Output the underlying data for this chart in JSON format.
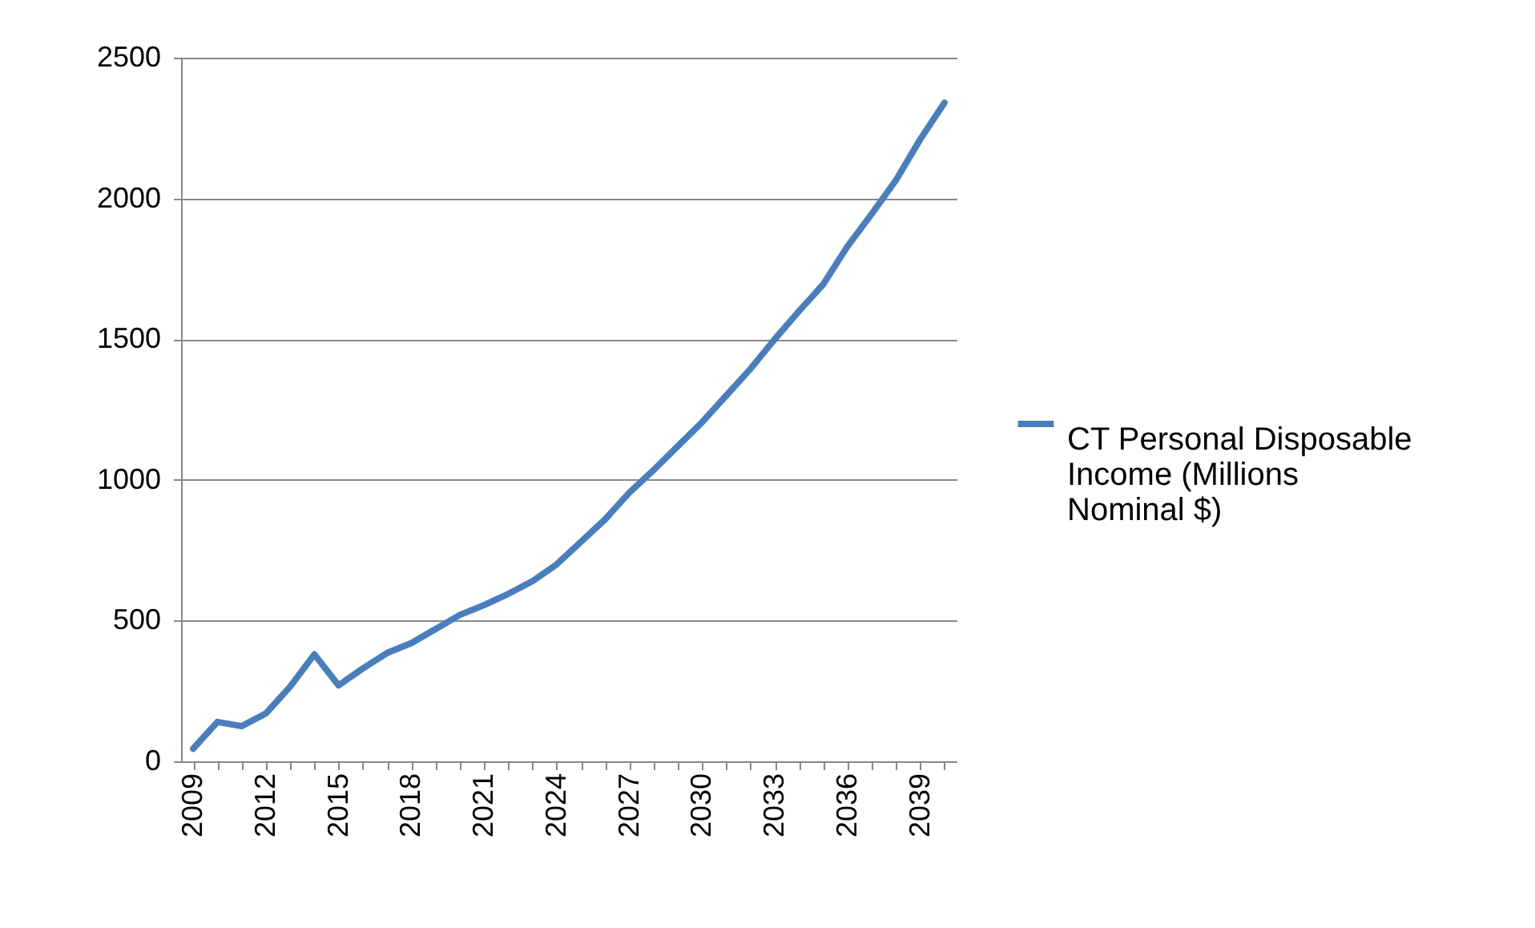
{
  "chart_data": {
    "type": "line",
    "categories": [
      "2009",
      null,
      null,
      "2012",
      null,
      null,
      "2015",
      null,
      null,
      "2018",
      null,
      null,
      "2021",
      null,
      null,
      "2024",
      null,
      null,
      "2027",
      null,
      null,
      "2030",
      null,
      null,
      "2033",
      null,
      null,
      "2036",
      null,
      null,
      "2039",
      null
    ],
    "series": [
      {
        "name": "CT Personal Disposable Income (Millions Nominal $)",
        "color": "#4a7ebb",
        "values": [
          45,
          140,
          125,
          170,
          265,
          380,
          270,
          330,
          385,
          420,
          470,
          520,
          555,
          595,
          640,
          700,
          780,
          860,
          955,
          1035,
          1120,
          1205,
          1300,
          1395,
          1500,
          1600,
          1695,
          1830,
          1945,
          2065,
          2210,
          2340
        ]
      }
    ],
    "ylim": [
      0,
      2500
    ],
    "yticks": [
      0,
      500,
      1000,
      1500,
      2000,
      2500
    ],
    "grid": "y",
    "legend": "right",
    "marker": "none",
    "line_style": "solid"
  }
}
